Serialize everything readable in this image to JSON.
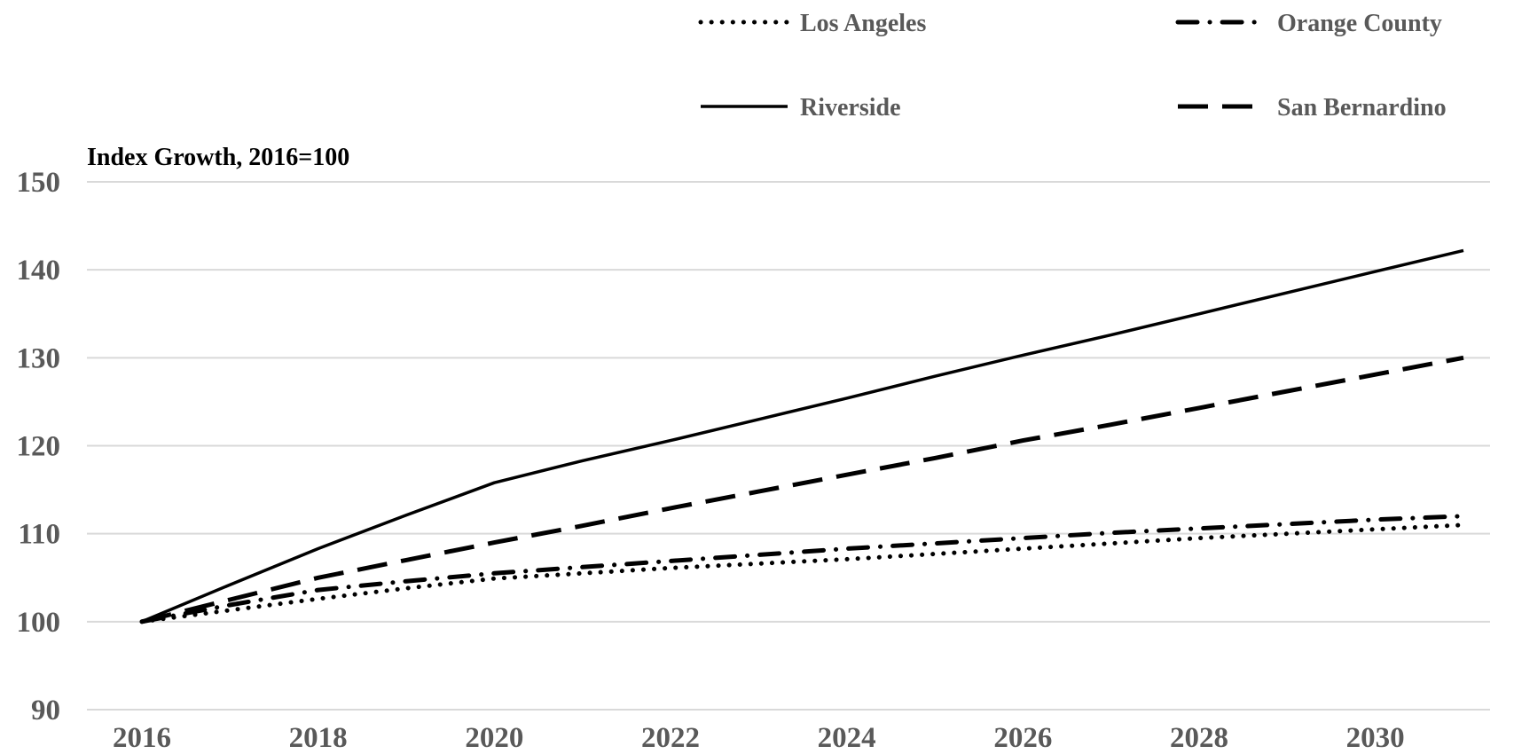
{
  "chart_data": {
    "type": "line",
    "title": "",
    "xlabel": "",
    "ylabel": "Index Growth, 2016=100",
    "x": [
      2016,
      2017,
      2018,
      2019,
      2020,
      2021,
      2022,
      2023,
      2024,
      2025,
      2026,
      2027,
      2028,
      2029,
      2030,
      2031
    ],
    "x_ticks": [
      "2016",
      "2018",
      "2020",
      "2022",
      "2024",
      "2026",
      "2028",
      "2030"
    ],
    "x_tick_values": [
      2016,
      2018,
      2020,
      2022,
      2024,
      2026,
      2028,
      2030
    ],
    "y_ticks": [
      "90",
      "100",
      "110",
      "120",
      "130",
      "140",
      "150"
    ],
    "y_tick_values": [
      90,
      100,
      110,
      120,
      130,
      140,
      150
    ],
    "xlim": [
      2016,
      2031
    ],
    "ylim": [
      90,
      150
    ],
    "grid": "horizontal",
    "legend": "top",
    "series": [
      {
        "name": "Los Angeles",
        "style": "dotted",
        "values": [
          100,
          101.3,
          102.6,
          103.8,
          104.9,
          105.5,
          106.1,
          106.6,
          107.1,
          107.7,
          108.3,
          108.9,
          109.5,
          110.0,
          110.5,
          111.0
        ]
      },
      {
        "name": "Orange County",
        "style": "dash-dot",
        "values": [
          100,
          101.9,
          103.6,
          104.6,
          105.5,
          106.2,
          106.9,
          107.6,
          108.3,
          108.9,
          109.5,
          110.1,
          110.6,
          111.1,
          111.6,
          112.0
        ]
      },
      {
        "name": "Riverside",
        "style": "solid",
        "values": [
          100,
          104.2,
          108.3,
          112.1,
          115.8,
          118.3,
          120.6,
          123.0,
          125.4,
          127.9,
          130.3,
          132.6,
          135.0,
          137.4,
          139.8,
          142.2
        ]
      },
      {
        "name": "San Bernardino",
        "style": "long-dash",
        "values": [
          100,
          102.5,
          105.0,
          107.0,
          109.0,
          110.9,
          112.9,
          114.8,
          116.7,
          118.6,
          120.6,
          122.4,
          124.3,
          126.2,
          128.1,
          130.0
        ]
      }
    ]
  }
}
